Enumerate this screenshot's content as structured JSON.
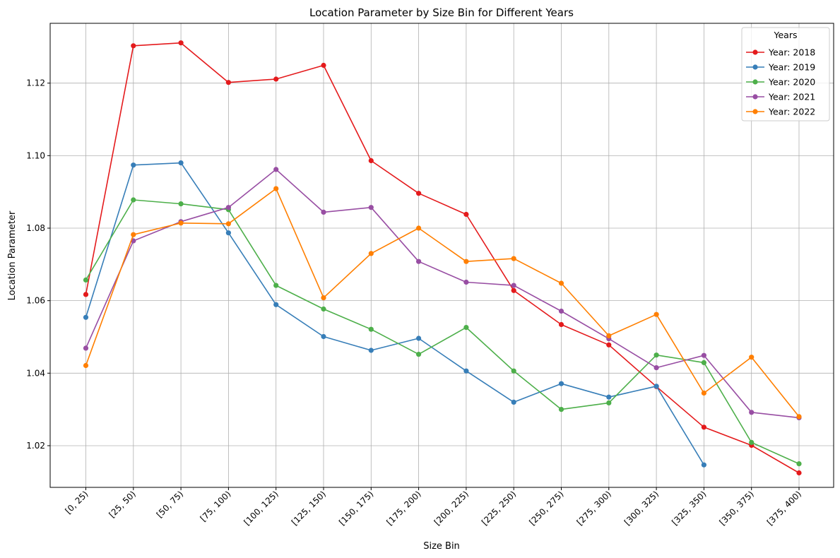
{
  "chart_data": {
    "type": "line",
    "title": "Location Parameter by Size Bin for Different Years",
    "xlabel": "Size Bin",
    "ylabel": "Location Parameter",
    "categories": [
      "[0, 25)",
      "[25, 50)",
      "[50, 75)",
      "[75, 100)",
      "[100, 125)",
      "[125, 150)",
      "[150, 175)",
      "[175, 200)",
      "[200, 225)",
      "[225, 250)",
      "[250, 275)",
      "[275, 300)",
      "[300, 325)",
      "[325, 350)",
      "[350, 375)",
      "[375, 400)"
    ],
    "y_ticks": [
      "1.02",
      "1.04",
      "1.06",
      "1.08",
      "1.10",
      "1.12"
    ],
    "ylim": [
      1.0085,
      1.1365
    ],
    "grid": true,
    "legend": {
      "title": "Years",
      "placement": "top-right"
    },
    "series": [
      {
        "name": "Year: 2018",
        "color": "#e41a1c",
        "values": [
          1.0617,
          1.1303,
          1.1311,
          1.1202,
          1.1211,
          1.1249,
          1.0986,
          1.0896,
          1.0838,
          1.0628,
          1.0534,
          1.0478,
          1.0363,
          1.0251,
          1.0201,
          1.0125
        ]
      },
      {
        "name": "Year: 2019",
        "color": "#377eb8",
        "values": [
          1.0554,
          1.0974,
          1.098,
          1.0787,
          1.0589,
          1.0501,
          1.0463,
          1.0496,
          1.0406,
          1.032,
          1.0371,
          1.0334,
          1.0364,
          1.0147,
          null,
          null
        ]
      },
      {
        "name": "Year: 2020",
        "color": "#4daf4a",
        "values": [
          1.0657,
          1.0878,
          1.0867,
          1.0851,
          1.0642,
          1.0577,
          1.0521,
          1.0452,
          1.0526,
          1.0406,
          1.03,
          1.0318,
          1.045,
          1.0429,
          1.0209,
          1.015
        ]
      },
      {
        "name": "Year: 2021",
        "color": "#984ea3",
        "values": [
          1.0469,
          1.0765,
          1.0818,
          1.0857,
          1.0962,
          1.0844,
          1.0857,
          1.0708,
          1.0651,
          1.0642,
          1.0571,
          1.0495,
          1.0415,
          1.0449,
          1.0292,
          1.0277
        ]
      },
      {
        "name": "Year: 2022",
        "color": "#ff7f00",
        "values": [
          1.0421,
          1.0782,
          1.0814,
          1.0812,
          1.0909,
          1.0608,
          1.073,
          1.08,
          1.0708,
          1.0716,
          1.0648,
          1.0503,
          1.0562,
          1.0345,
          1.0444,
          1.028
        ]
      }
    ]
  }
}
